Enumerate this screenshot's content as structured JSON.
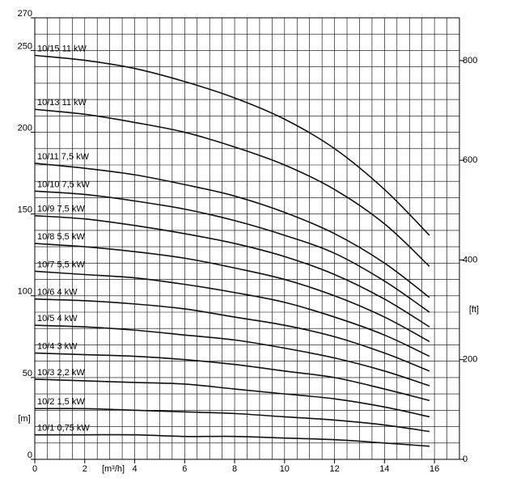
{
  "chart_data": {
    "type": "line",
    "x_label": "[m³/h]",
    "y_label": "[m]",
    "y2_label": "[ft]",
    "x": [
      0,
      2,
      4,
      6,
      8,
      10,
      12,
      14,
      15.8
    ],
    "xlim": [
      0,
      17
    ],
    "xticks": [
      0,
      2,
      4,
      6,
      8,
      10,
      12,
      14,
      16
    ],
    "ylim": [
      0,
      270
    ],
    "yticks": [
      0,
      50,
      100,
      150,
      200,
      250,
      270
    ],
    "y2lim": [
      0,
      885.8
    ],
    "y2ticks": [
      0,
      200,
      400,
      600,
      800
    ],
    "grid": {
      "x_step": 0.5,
      "y_step": 10
    },
    "color": "#111111",
    "series": [
      {
        "name": "10/15 11 kW",
        "values": [
          247,
          244,
          239,
          231,
          221,
          208,
          190,
          165,
          137
        ]
      },
      {
        "name": "10/13 11 kW",
        "values": [
          214,
          211,
          206,
          200,
          191,
          180,
          165,
          144,
          118
        ]
      },
      {
        "name": "10/11 7,5 kW",
        "values": [
          181,
          178,
          174,
          168,
          161,
          151,
          138,
          120,
          99
        ]
      },
      {
        "name": "10/10 7,5 kW",
        "values": [
          164,
          162,
          158,
          153,
          146,
          137,
          126,
          109,
          90
        ]
      },
      {
        "name": "10/9  7,5 kW",
        "values": [
          149,
          147,
          143,
          138,
          132,
          124,
          113,
          98,
          81
        ]
      },
      {
        "name": "10/8 5,5 kW",
        "values": [
          132,
          130,
          127,
          123,
          117,
          110,
          100,
          87,
          72
        ]
      },
      {
        "name": "10/7 5,5 kW",
        "values": [
          115,
          113,
          111,
          107,
          102,
          96,
          87,
          76,
          63
        ]
      },
      {
        "name": "10/6 4 kW",
        "values": [
          98,
          97,
          95,
          92,
          87,
          82,
          75,
          65,
          54
        ]
      },
      {
        "name": "10/5 4 kW",
        "values": [
          82,
          81,
          79,
          76,
          73,
          68,
          62,
          54,
          45
        ]
      },
      {
        "name": "10/4 3 kW",
        "values": [
          65,
          64,
          63,
          61,
          58,
          54,
          50,
          43,
          36
        ]
      },
      {
        "name": "10/3 2,2 kW",
        "values": [
          49,
          48,
          47,
          46,
          43,
          40,
          37,
          32,
          26
        ]
      },
      {
        "name": "10/2 1,5 kW",
        "values": [
          31,
          31,
          30,
          29,
          28,
          26,
          24,
          21,
          17
        ]
      },
      {
        "name": "10/1 0,75 kW",
        "values": [
          15,
          15,
          15,
          14,
          14,
          13,
          12,
          10,
          8
        ]
      }
    ]
  }
}
